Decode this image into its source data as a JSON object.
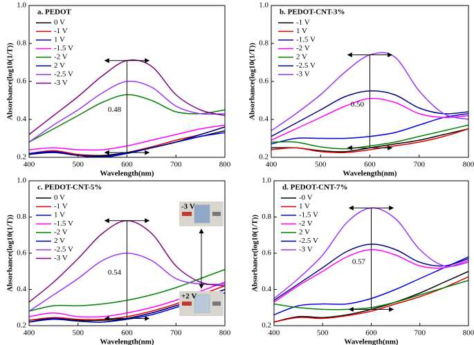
{
  "chart_data": [
    {
      "type": "line",
      "title": "a. PEDOT",
      "x_label": "Wavelength(nm)",
      "y_label": "Absorbance(log10(1/T))",
      "x": [
        400,
        450,
        500,
        550,
        600,
        650,
        700,
        750,
        800
      ],
      "xlim": [
        400,
        800
      ],
      "xticks": [
        400,
        500,
        600,
        700,
        800
      ],
      "ylim": [
        0.2,
        1
      ],
      "yticks": [
        0.2,
        0.4,
        0.6,
        0.8,
        {
          "value": 1,
          "label": "1.0"
        }
      ],
      "annotation": "0.48",
      "series": [
        {
          "name": "0 V",
          "color": "#000000",
          "values": [
            0.22,
            0.23,
            0.215,
            0.21,
            0.225,
            0.25,
            0.28,
            0.31,
            0.34
          ]
        },
        {
          "name": "-1 V",
          "color": "#e00000",
          "values": [
            0.22,
            0.235,
            0.215,
            0.205,
            0.225,
            0.255,
            0.29,
            0.32,
            0.36
          ]
        },
        {
          "name": "1 V",
          "color": "#0000e0",
          "values": [
            0.22,
            0.23,
            0.21,
            0.2,
            0.22,
            0.25,
            0.28,
            0.31,
            0.33
          ]
        },
        {
          "name": "-1.5 V",
          "color": "#ff00ff",
          "values": [
            0.24,
            0.25,
            0.24,
            0.24,
            0.26,
            0.29,
            0.32,
            0.35,
            0.37
          ]
        },
        {
          "name": "-2 V",
          "color": "#008000",
          "values": [
            0.28,
            0.35,
            0.42,
            0.49,
            0.53,
            0.5,
            0.44,
            0.43,
            0.45
          ]
        },
        {
          "name": "2 V",
          "color": "#000080",
          "values": [
            0.215,
            0.225,
            0.21,
            0.205,
            0.225,
            0.25,
            0.28,
            0.32,
            0.36
          ]
        },
        {
          "name": "-2.5 V",
          "color": "#9933ff",
          "values": [
            0.28,
            0.37,
            0.45,
            0.54,
            0.6,
            0.57,
            0.47,
            0.43,
            0.43
          ]
        },
        {
          "name": "-3 V",
          "color": "#800080",
          "values": [
            0.32,
            0.42,
            0.52,
            0.63,
            0.71,
            0.68,
            0.53,
            0.45,
            0.42
          ]
        }
      ]
    },
    {
      "type": "line",
      "title": "b. PEDOT-CNT-3%",
      "x_label": "Wavelength(nm)",
      "y_label": "Absorbance(log10(1/T))",
      "x": [
        400,
        450,
        500,
        550,
        600,
        650,
        700,
        750,
        800
      ],
      "xlim": [
        400,
        800
      ],
      "xticks": [
        400,
        500,
        600,
        700,
        800
      ],
      "ylim": [
        0.2,
        1
      ],
      "yticks": [
        0.2,
        0.4,
        0.6,
        0.8,
        {
          "value": 1,
          "label": "1.0"
        }
      ],
      "annotation": "0.50",
      "series": [
        {
          "name": "-1 V",
          "color": "#000000",
          "values": [
            0.25,
            0.25,
            0.235,
            0.23,
            0.25,
            0.27,
            0.29,
            0.32,
            0.35
          ]
        },
        {
          "name": "1 V",
          "color": "#e00000",
          "values": [
            0.24,
            0.25,
            0.23,
            0.225,
            0.24,
            0.26,
            0.28,
            0.31,
            0.35
          ]
        },
        {
          "name": "-1.5 V",
          "color": "#0000e0",
          "values": [
            0.27,
            0.3,
            0.3,
            0.3,
            0.31,
            0.33,
            0.37,
            0.41,
            0.43
          ]
        },
        {
          "name": "-2 V",
          "color": "#ff00ff",
          "values": [
            0.29,
            0.35,
            0.41,
            0.47,
            0.51,
            0.49,
            0.43,
            0.41,
            0.42
          ]
        },
        {
          "name": "2 V",
          "color": "#008000",
          "values": [
            0.28,
            0.28,
            0.255,
            0.245,
            0.26,
            0.28,
            0.31,
            0.34,
            0.37
          ]
        },
        {
          "name": "-2.5 V",
          "color": "#000080",
          "values": [
            0.31,
            0.38,
            0.45,
            0.52,
            0.55,
            0.53,
            0.46,
            0.43,
            0.44
          ]
        },
        {
          "name": "-3 V",
          "color": "#9933ff",
          "values": [
            0.34,
            0.43,
            0.53,
            0.65,
            0.74,
            0.73,
            0.55,
            0.43,
            0.4
          ]
        }
      ]
    },
    {
      "type": "line",
      "title": "c. PEDOT-CNT-5%",
      "x_label": "Wavelength(nm)",
      "y_label": "Absorbance(log10(1/T))",
      "x": [
        400,
        450,
        500,
        550,
        600,
        650,
        700,
        750,
        800
      ],
      "xlim": [
        400,
        800
      ],
      "xticks": [
        400,
        500,
        600,
        700,
        800
      ],
      "ylim": [
        0.2,
        1
      ],
      "yticks": [
        0.2,
        0.4,
        0.6,
        0.8,
        {
          "value": 1,
          "label": "1.0"
        }
      ],
      "annotation": "0.54",
      "photo_labels": [
        "-3 V",
        "+2 V"
      ],
      "series": [
        {
          "name": "0 V",
          "color": "#000000",
          "values": [
            0.23,
            0.24,
            0.23,
            0.23,
            0.24,
            0.27,
            0.31,
            0.35,
            0.4
          ]
        },
        {
          "name": "-1 V",
          "color": "#e00000",
          "values": [
            0.23,
            0.245,
            0.235,
            0.235,
            0.25,
            0.28,
            0.32,
            0.37,
            0.42
          ]
        },
        {
          "name": "1 V",
          "color": "#0000e0",
          "values": [
            0.22,
            0.235,
            0.225,
            0.22,
            0.235,
            0.26,
            0.3,
            0.34,
            0.38
          ]
        },
        {
          "name": "-1.5 V",
          "color": "#ff00ff",
          "values": [
            0.25,
            0.27,
            0.25,
            0.25,
            0.27,
            0.3,
            0.34,
            0.39,
            0.44
          ]
        },
        {
          "name": "-2 V",
          "color": "#008000",
          "values": [
            0.28,
            0.31,
            0.31,
            0.32,
            0.34,
            0.37,
            0.41,
            0.46,
            0.51
          ]
        },
        {
          "name": "2 V",
          "color": "#000080",
          "values": [
            0.22,
            0.24,
            0.225,
            0.22,
            0.24,
            0.27,
            0.31,
            0.35,
            0.4
          ]
        },
        {
          "name": "-2.5 V",
          "color": "#9933ff",
          "values": [
            0.28,
            0.37,
            0.46,
            0.56,
            0.6,
            0.56,
            0.46,
            0.43,
            0.43
          ]
        },
        {
          "name": "-3 V",
          "color": "#800080",
          "values": [
            0.33,
            0.44,
            0.57,
            0.71,
            0.78,
            0.71,
            0.53,
            0.44,
            0.42
          ]
        }
      ]
    },
    {
      "type": "line",
      "title": "d. PEDOT-CNT-7%",
      "x_label": "Wavelength(nm)",
      "y_label": "Absorbance(log10(1/T))",
      "x": [
        400,
        450,
        500,
        550,
        600,
        650,
        700,
        750,
        800
      ],
      "xlim": [
        400,
        800
      ],
      "xticks": [
        400,
        500,
        600,
        700,
        800
      ],
      "ylim": [
        0.2,
        1
      ],
      "yticks": [
        0.2,
        0.4,
        0.6,
        0.8,
        {
          "value": 1,
          "label": "1.0"
        }
      ],
      "annotation": "0.57",
      "series": [
        {
          "name": "-0 V",
          "color": "#000000",
          "values": [
            0.22,
            0.25,
            0.245,
            0.26,
            0.29,
            0.33,
            0.38,
            0.44,
            0.5
          ]
        },
        {
          "name": "1 V",
          "color": "#e00000",
          "values": [
            0.22,
            0.245,
            0.24,
            0.255,
            0.28,
            0.32,
            0.36,
            0.41,
            0.47
          ]
        },
        {
          "name": "-1.5 V",
          "color": "#0000e0",
          "values": [
            0.26,
            0.31,
            0.32,
            0.32,
            0.35,
            0.4,
            0.46,
            0.52,
            0.58
          ]
        },
        {
          "name": "-2 V",
          "color": "#ff00ff",
          "values": [
            0.33,
            0.42,
            0.5,
            0.58,
            0.62,
            0.59,
            0.53,
            0.52,
            0.56
          ]
        },
        {
          "name": "2 V",
          "color": "#008000",
          "values": [
            0.32,
            0.3,
            0.29,
            0.29,
            0.3,
            0.33,
            0.37,
            0.41,
            0.45
          ]
        },
        {
          "name": "-2.5 V",
          "color": "#000080",
          "values": [
            0.34,
            0.43,
            0.52,
            0.61,
            0.65,
            0.62,
            0.55,
            0.53,
            0.57
          ]
        },
        {
          "name": "-3 V",
          "color": "#9933ff",
          "values": [
            0.35,
            0.46,
            0.59,
            0.77,
            0.85,
            0.79,
            0.62,
            0.53,
            0.55
          ]
        }
      ]
    }
  ]
}
